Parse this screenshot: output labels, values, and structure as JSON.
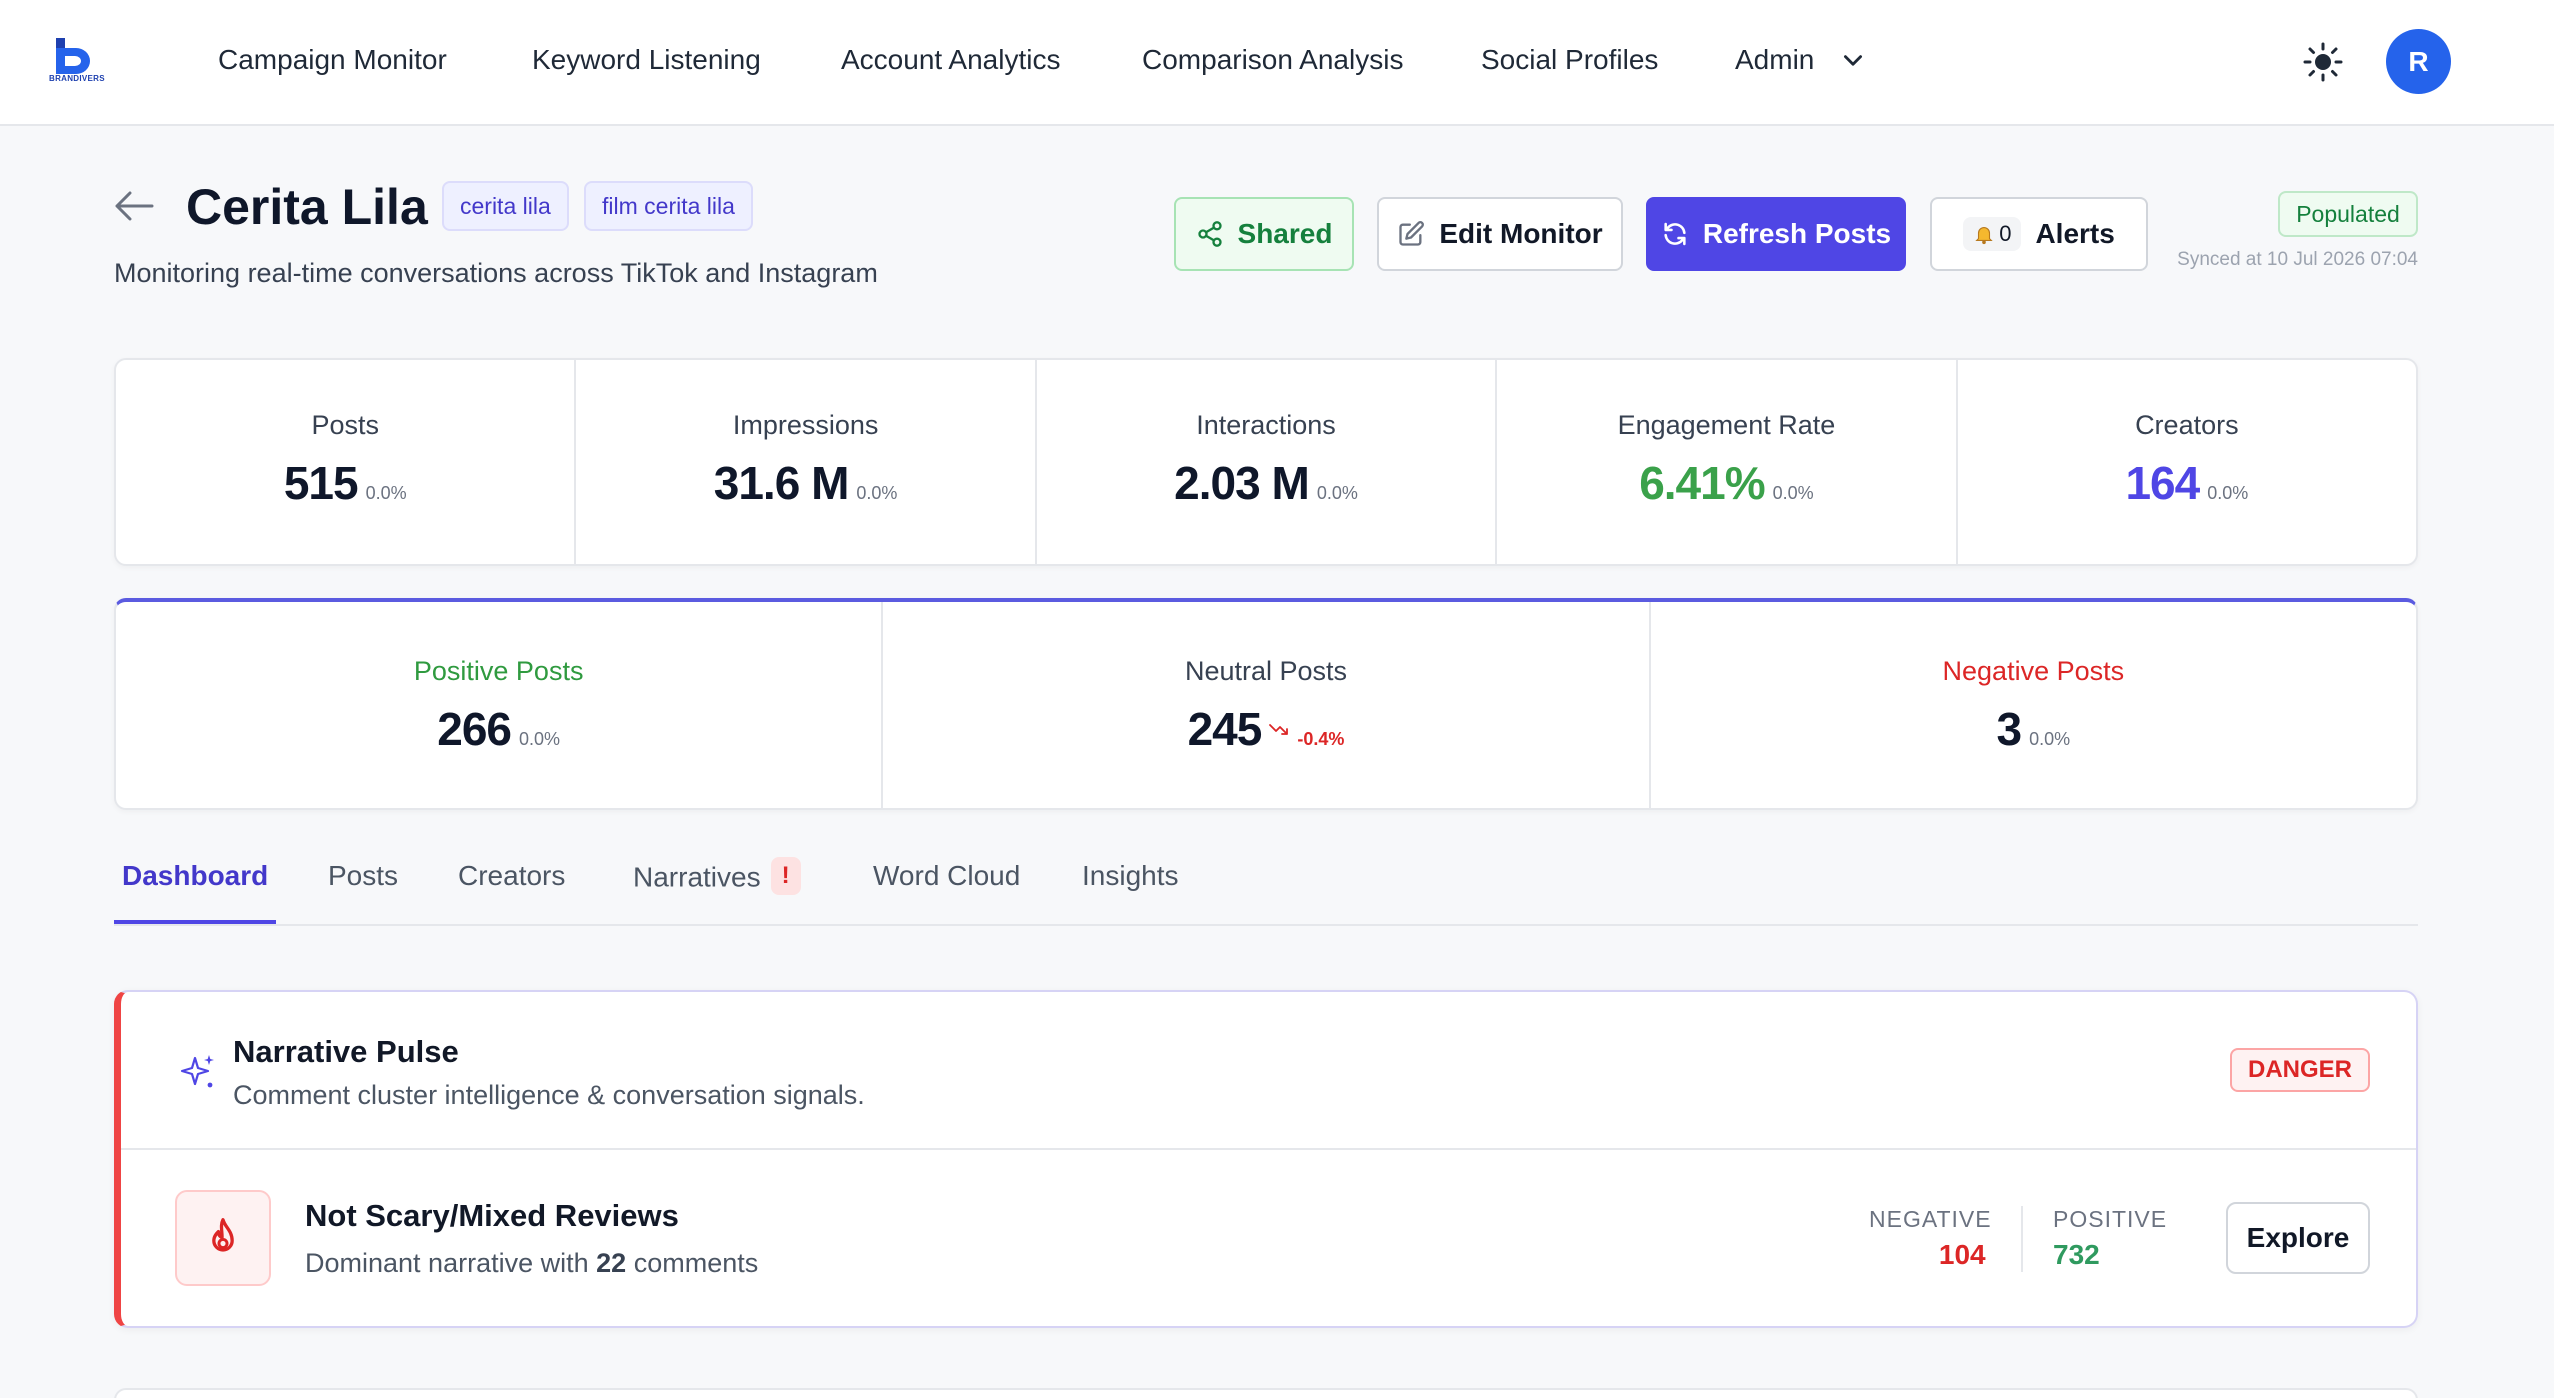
{
  "nav": {
    "logo_text": "BRANDIVERS",
    "items": [
      "Campaign Monitor",
      "Keyword Listening",
      "Account Analytics",
      "Comparison Analysis",
      "Social Profiles",
      "Admin"
    ],
    "avatar_initial": "R"
  },
  "header": {
    "title": "Cerita Lila",
    "tags": [
      "cerita lila",
      "film cerita lila"
    ],
    "subtitle": "Monitoring real-time conversations across TikTok and Instagram",
    "buttons": {
      "shared": "Shared",
      "edit": "Edit Monitor",
      "refresh": "Refresh Posts",
      "alerts": "Alerts",
      "alerts_count": "0"
    },
    "status": "Populated",
    "synced": "Synced at 10 Jul 2026 07:04"
  },
  "stats": [
    {
      "label": "Posts",
      "value": "515",
      "change": "0.0%",
      "color": "#0f172a"
    },
    {
      "label": "Impressions",
      "value": "31.6 M",
      "change": "0.0%",
      "color": "#0f172a"
    },
    {
      "label": "Interactions",
      "value": "2.03 M",
      "change": "0.0%",
      "color": "#0f172a"
    },
    {
      "label": "Engagement Rate",
      "value": "6.41%",
      "change": "0.0%",
      "color": "#3aa14a"
    },
    {
      "label": "Creators",
      "value": "164",
      "change": "0.0%",
      "color": "#4f46e5"
    }
  ],
  "sentiment": [
    {
      "label": "Positive Posts",
      "value": "266",
      "change": "0.0%",
      "label_color": "#2f9a3f",
      "change_color": "#6b7280"
    },
    {
      "label": "Neutral Posts",
      "value": "245",
      "change": "-0.4%",
      "label_color": "#374151",
      "change_color": "#dc2626"
    },
    {
      "label": "Negative Posts",
      "value": "3",
      "change": "0.0%",
      "label_color": "#dc2626",
      "change_color": "#6b7280"
    }
  ],
  "tabs": [
    "Dashboard",
    "Posts",
    "Creators",
    "Narratives",
    "Word Cloud",
    "Insights"
  ],
  "tabs_active": "Dashboard",
  "narrative_badge": "!",
  "pulse": {
    "title": "Narrative Pulse",
    "subtitle": "Comment cluster intelligence & conversation signals.",
    "badge": "DANGER",
    "narrative_title": "Not Scary/Mixed Reviews",
    "narrative_sub_prefix": "Dominant narrative with",
    "narrative_count": "22",
    "narrative_sub_suffix": "comments",
    "negative_label": "NEGATIVE",
    "negative_value": "104",
    "positive_label": "POSITIVE",
    "positive_value": "732",
    "explore": "Explore"
  }
}
